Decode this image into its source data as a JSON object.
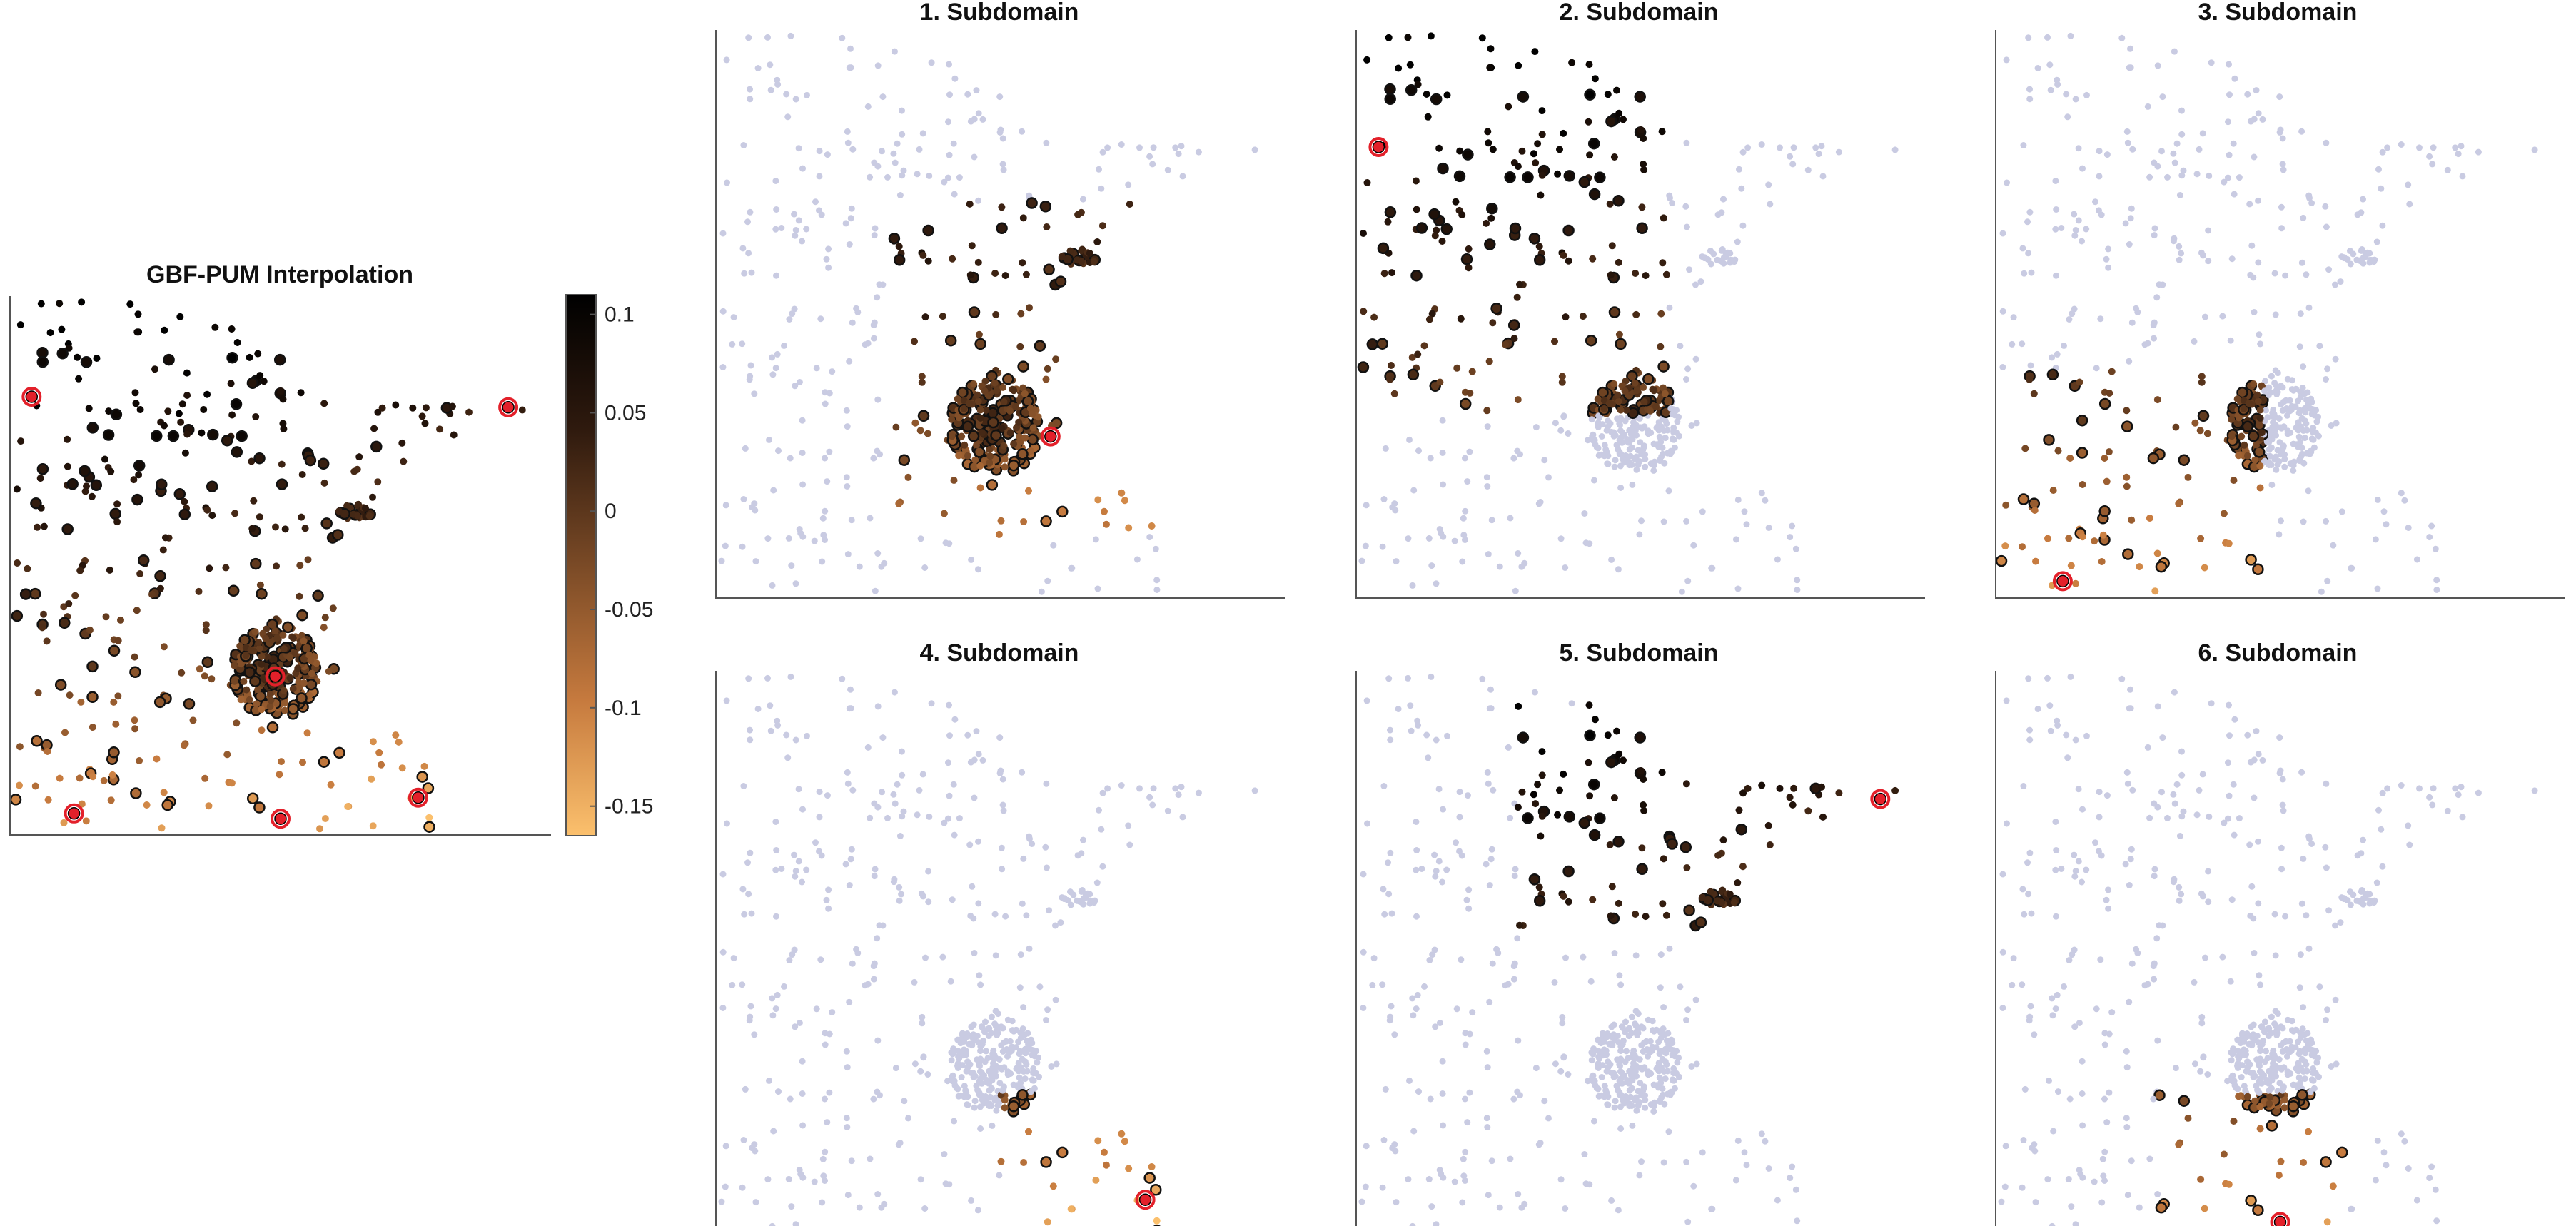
{
  "chart_data": [
    {
      "id": "main",
      "type": "scatter",
      "title": "GBF-PUM Interpolation",
      "colorbar": {
        "label": "",
        "range": [
          -0.165,
          0.11
        ],
        "ticks": [
          {
            "value": 0.1,
            "label": "0.1"
          },
          {
            "value": 0.05,
            "label": "0.05"
          },
          {
            "value": 0,
            "label": "0"
          },
          {
            "value": -0.05,
            "label": "-0.05"
          },
          {
            "value": -0.1,
            "label": "-0.1"
          },
          {
            "value": -0.15,
            "label": "-0.15"
          }
        ],
        "colormap": [
          "#fbc06d",
          "#c67a3e",
          "#7a4a26",
          "#2f1a0e",
          "#000000"
        ]
      },
      "xlabel": "",
      "ylabel": "",
      "grid": false,
      "highlight": [
        [
          0.03,
          0.18
        ],
        [
          0.93,
          0.2
        ],
        [
          0.49,
          0.71
        ],
        [
          0.11,
          0.97
        ],
        [
          0.5,
          0.98
        ],
        [
          0.76,
          0.94
        ]
      ]
    },
    {
      "id": "sub1",
      "type": "scatter",
      "title": "1. Subdomain",
      "region": [
        0.3,
        0.3,
        0.92,
        0.9
      ],
      "highlight": [
        [
          0.59,
          0.72
        ]
      ],
      "xlabel": "",
      "ylabel": ""
    },
    {
      "id": "sub2",
      "type": "scatter",
      "title": "2. Subdomain",
      "region": [
        0.0,
        0.0,
        0.55,
        0.68
      ],
      "highlight": [
        [
          0.03,
          0.2
        ]
      ],
      "xlabel": "",
      "ylabel": ""
    },
    {
      "id": "sub3",
      "type": "scatter",
      "title": "3. Subdomain",
      "region": [
        0.0,
        0.6,
        0.47,
        1.0
      ],
      "highlight": [
        [
          0.11,
          0.98
        ]
      ],
      "xlabel": "",
      "ylabel": ""
    },
    {
      "id": "sub4",
      "type": "scatter",
      "title": "4. Subdomain",
      "region": [
        0.5,
        0.75,
        0.88,
        1.0
      ],
      "highlight": [
        [
          0.76,
          0.94
        ]
      ],
      "xlabel": "",
      "ylabel": ""
    },
    {
      "id": "sub5",
      "type": "scatter",
      "title": "5. Subdomain",
      "region": [
        0.28,
        0.05,
        1.0,
        0.45
      ],
      "highlight": [
        [
          0.93,
          0.22
        ]
      ],
      "xlabel": "",
      "ylabel": ""
    },
    {
      "id": "sub6",
      "type": "scatter",
      "title": "6. Subdomain",
      "region": [
        0.28,
        0.75,
        0.62,
        1.0
      ],
      "highlight": [
        [
          0.5,
          0.98
        ]
      ],
      "xlabel": "",
      "ylabel": ""
    }
  ],
  "colors": {
    "inactive_points": "#c9cbe2",
    "highlight_ring": "#e3202a",
    "point_outline": "#111111"
  }
}
